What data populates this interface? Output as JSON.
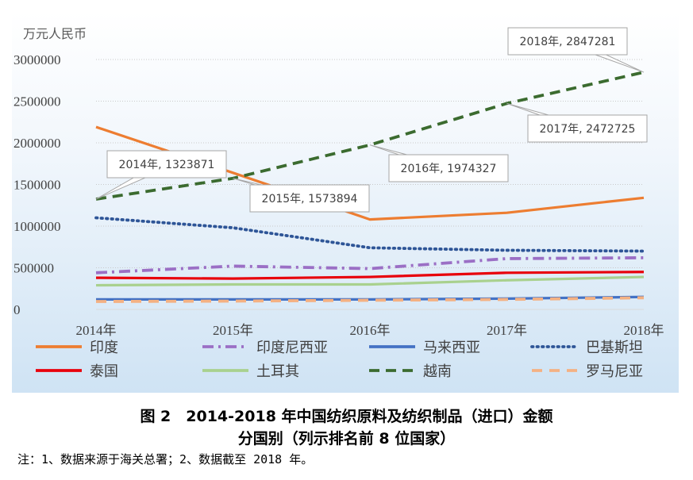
{
  "chart_data": {
    "type": "line",
    "ylabel": "万元人民币",
    "ylim": [
      0,
      3000000
    ],
    "yticks": [
      "3000000",
      "2500000",
      "2000000",
      "1500000",
      "1000000",
      "500000",
      "0"
    ],
    "ytick_values": [
      3000000,
      2500000,
      2000000,
      1500000,
      1000000,
      500000,
      0
    ],
    "categories": [
      "2014年",
      "2015年",
      "2016年",
      "2017年",
      "2018年"
    ],
    "series": [
      {
        "name": "印度",
        "color": "#ed7d31",
        "dash": "solid",
        "values": [
          2190000,
          1640000,
          1080000,
          1160000,
          1340000
        ]
      },
      {
        "name": "印度尼西亚",
        "color": "#9b6fc5",
        "dash": "dashdot",
        "values": [
          440000,
          520000,
          490000,
          610000,
          620000
        ]
      },
      {
        "name": "马来西亚",
        "color": "#4472c4",
        "dash": "solid",
        "values": [
          120000,
          120000,
          120000,
          130000,
          150000
        ]
      },
      {
        "name": "巴基斯坦",
        "color": "#2e5597",
        "dash": "dot",
        "values": [
          1100000,
          980000,
          740000,
          710000,
          700000
        ]
      },
      {
        "name": "泰国",
        "color": "#e8000b",
        "dash": "solid",
        "values": [
          380000,
          370000,
          390000,
          440000,
          450000
        ]
      },
      {
        "name": "土耳其",
        "color": "#a9d18e",
        "dash": "solid",
        "values": [
          290000,
          300000,
          300000,
          350000,
          390000
        ]
      },
      {
        "name": "越南",
        "color": "#3b6b2f",
        "dash": "dash",
        "values": [
          1323871,
          1573894,
          1974327,
          2472725,
          2847281
        ]
      },
      {
        "name": "罗马尼亚",
        "color": "#f4b183",
        "dash": "longdash",
        "values": [
          95000,
          100000,
          110000,
          120000,
          140000
        ]
      }
    ],
    "annotations": [
      "2014年, 1323871",
      "2015年, 1573894",
      "2016年, 1974327",
      "2017年, 2472725",
      "2018年, 2847281"
    ],
    "grid": true,
    "legend": "bottom"
  },
  "caption_line1": "图 2　2014-2018 年中国纺织原料及纺织制品（进口）金额",
  "caption_line2": "分国别（列示排名前 8 位国家）",
  "note": "注：1、数据来源于海关总署；2、数据截至 2018 年。"
}
